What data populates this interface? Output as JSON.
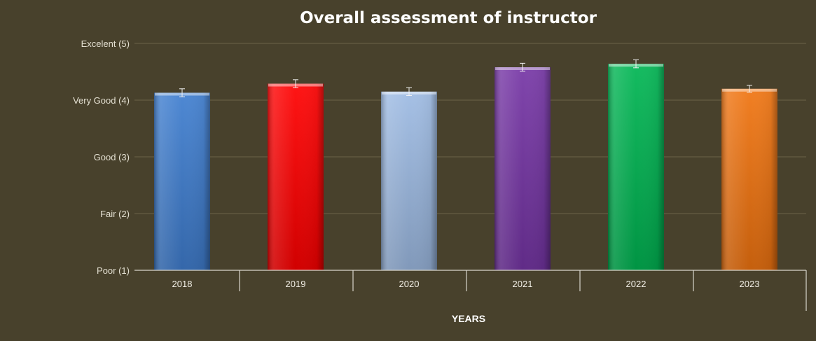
{
  "chart_data": {
    "type": "bar",
    "title": "Overall assessment of instructor",
    "xlabel": "YEARS",
    "ylabel": "",
    "categories": [
      "2018",
      "2019",
      "2020",
      "2021",
      "2022",
      "2023"
    ],
    "values": [
      4.13,
      4.29,
      4.15,
      4.58,
      4.64,
      4.2
    ],
    "error": [
      0.07,
      0.07,
      0.07,
      0.07,
      0.07,
      0.06
    ],
    "ylim": [
      1,
      5
    ],
    "yticks": [
      {
        "value": 5,
        "label": "Excelent (5)"
      },
      {
        "value": 4,
        "label": "Very Good (4)"
      },
      {
        "value": 3,
        "label": "Good (3)"
      },
      {
        "value": 2,
        "label": "Fair (2)"
      },
      {
        "value": 1,
        "label": "Poor (1)"
      }
    ],
    "colors": [
      "#3f7ecf",
      "#ff0000",
      "#9dbbe3",
      "#7535a5",
      "#00b552",
      "#f07410"
    ],
    "grid": true,
    "legend": "none"
  }
}
